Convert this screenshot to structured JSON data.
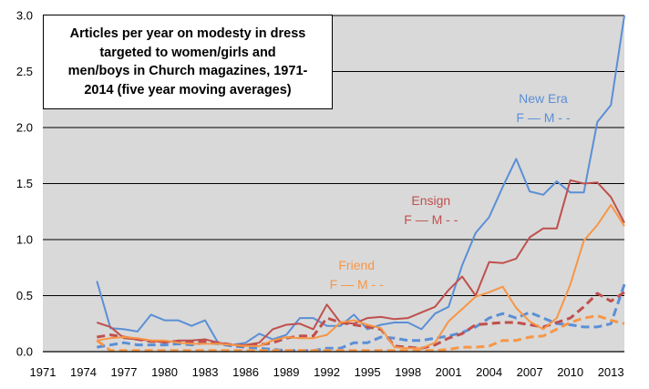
{
  "chart_data": {
    "type": "line",
    "title": "Articles per year on modesty in dress\ntargeted to women/girls and\nmen/boys in Church magazines, 1971-\n2014 (five year moving averages)",
    "xlim": [
      1971,
      2014
    ],
    "ylim": [
      0,
      3.0
    ],
    "x_ticks": [
      "1971",
      "1974",
      "1977",
      "1980",
      "1983",
      "1986",
      "1989",
      "1992",
      "1995",
      "1998",
      "2001",
      "2004",
      "2007",
      "2010",
      "2013"
    ],
    "y_ticks": [
      "0.0",
      "0.5",
      "1.0",
      "1.5",
      "2.0",
      "2.5",
      "3.0"
    ],
    "grid": true,
    "colors": {
      "new_era": "#5B8FD6",
      "ensign": "#C0504D",
      "friend": "#F79646",
      "plot_background": "#D9D9D9"
    },
    "annotations": [
      {
        "text": "New Era",
        "line2": "F —  M - -",
        "color": "#5B8FD6",
        "x": 2008,
        "y": 2.22
      },
      {
        "text": "Ensign",
        "line2": "F —  M - -",
        "color": "#C0504D",
        "x": 1999.7,
        "y": 1.31
      },
      {
        "text": "Friend",
        "line2": "F —  M - -",
        "color": "#F79646",
        "x": 1994.2,
        "y": 0.73
      }
    ],
    "series": [
      {
        "key": "new_era_f",
        "style": "solid",
        "color": "#5B8FD6",
        "x": [
          1975,
          1976,
          1977,
          1978,
          1979,
          1980,
          1981,
          1982,
          1983,
          1984,
          1985,
          1986,
          1987,
          1988,
          1989,
          1990,
          1991,
          1992,
          1993,
          1994,
          1995,
          1996,
          1997,
          1998,
          1999,
          2000,
          2001,
          2002,
          2003,
          2004,
          2005,
          2006,
          2007,
          2008,
          2009,
          2010,
          2011,
          2012,
          2013,
          2014
        ],
        "y": [
          0.63,
          0.21,
          0.2,
          0.18,
          0.33,
          0.28,
          0.28,
          0.23,
          0.28,
          0.07,
          0.06,
          0.08,
          0.16,
          0.11,
          0.15,
          0.3,
          0.3,
          0.23,
          0.23,
          0.33,
          0.2,
          0.24,
          0.26,
          0.26,
          0.2,
          0.34,
          0.4,
          0.77,
          1.06,
          1.2,
          1.47,
          1.72,
          1.43,
          1.4,
          1.52,
          1.42,
          1.42,
          2.05,
          2.2,
          3.0
        ]
      },
      {
        "key": "new_era_m",
        "style": "dashed",
        "color": "#5B8FD6",
        "x": [
          1975,
          1976,
          1977,
          1978,
          1979,
          1980,
          1981,
          1982,
          1983,
          1984,
          1985,
          1986,
          1987,
          1988,
          1989,
          1990,
          1991,
          1992,
          1993,
          1994,
          1995,
          1996,
          1997,
          1998,
          1999,
          2000,
          2001,
          2002,
          2003,
          2004,
          2005,
          2006,
          2007,
          2008,
          2009,
          2010,
          2011,
          2012,
          2013,
          2014
        ],
        "y": [
          0.04,
          0.06,
          0.08,
          0.06,
          0.06,
          0.06,
          0.07,
          0.06,
          0.08,
          0.07,
          0.05,
          0.04,
          0.03,
          0.02,
          0.01,
          0.01,
          0.01,
          0.03,
          0.03,
          0.08,
          0.08,
          0.13,
          0.12,
          0.1,
          0.1,
          0.12,
          0.14,
          0.17,
          0.22,
          0.3,
          0.34,
          0.3,
          0.35,
          0.3,
          0.25,
          0.24,
          0.22,
          0.22,
          0.25,
          0.6
        ]
      },
      {
        "key": "ensign_f",
        "style": "solid",
        "color": "#C0504D",
        "x": [
          1975,
          1976,
          1977,
          1978,
          1979,
          1980,
          1981,
          1982,
          1983,
          1984,
          1985,
          1986,
          1987,
          1988,
          1989,
          1990,
          1991,
          1992,
          1993,
          1994,
          1995,
          1996,
          1997,
          1998,
          1999,
          2000,
          2001,
          2002,
          2003,
          2004,
          2005,
          2006,
          2007,
          2008,
          2009,
          2010,
          2011,
          2012,
          2013,
          2014
        ],
        "y": [
          0.26,
          0.22,
          0.12,
          0.11,
          0.1,
          0.08,
          0.1,
          0.1,
          0.11,
          0.08,
          0.06,
          0.06,
          0.08,
          0.2,
          0.24,
          0.25,
          0.2,
          0.42,
          0.26,
          0.25,
          0.3,
          0.31,
          0.29,
          0.3,
          0.35,
          0.4,
          0.55,
          0.67,
          0.5,
          0.8,
          0.79,
          0.83,
          1.02,
          1.1,
          1.1,
          1.53,
          1.5,
          1.51,
          1.38,
          1.15
        ]
      },
      {
        "key": "ensign_m",
        "style": "dashed",
        "color": "#C0504D",
        "x": [
          1975,
          1976,
          1977,
          1978,
          1979,
          1980,
          1981,
          1982,
          1983,
          1984,
          1985,
          1986,
          1987,
          1988,
          1989,
          1990,
          1991,
          1992,
          1993,
          1994,
          1995,
          1996,
          1997,
          1998,
          1999,
          2000,
          2001,
          2002,
          2003,
          2004,
          2005,
          2006,
          2007,
          2008,
          2009,
          2010,
          2011,
          2012,
          2013,
          2014
        ],
        "y": [
          0.13,
          0.15,
          0.13,
          0.11,
          0.09,
          0.09,
          0.09,
          0.09,
          0.09,
          0.08,
          0.06,
          0.05,
          0.06,
          0.08,
          0.12,
          0.14,
          0.14,
          0.3,
          0.26,
          0.24,
          0.22,
          0.2,
          0.05,
          0.04,
          0.03,
          0.06,
          0.12,
          0.16,
          0.24,
          0.25,
          0.26,
          0.26,
          0.24,
          0.22,
          0.26,
          0.3,
          0.4,
          0.52,
          0.45,
          0.53
        ]
      },
      {
        "key": "friend_f",
        "style": "solid",
        "color": "#F79646",
        "x": [
          1975,
          1976,
          1977,
          1978,
          1979,
          1980,
          1981,
          1982,
          1983,
          1984,
          1985,
          1986,
          1987,
          1988,
          1989,
          1990,
          1991,
          1992,
          1993,
          1994,
          1995,
          1996,
          1997,
          1998,
          1999,
          2000,
          2001,
          2002,
          2003,
          2004,
          2005,
          2006,
          2007,
          2008,
          2009,
          2010,
          2011,
          2012,
          2013,
          2014
        ],
        "y": [
          0.1,
          0.12,
          0.13,
          0.12,
          0.1,
          0.1,
          0.08,
          0.07,
          0.07,
          0.07,
          0.06,
          0.05,
          0.05,
          0.1,
          0.13,
          0.12,
          0.12,
          0.15,
          0.26,
          0.28,
          0.24,
          0.21,
          0.04,
          0.03,
          0.03,
          0.08,
          0.27,
          0.38,
          0.49,
          0.53,
          0.58,
          0.39,
          0.27,
          0.2,
          0.3,
          0.6,
          0.99,
          1.13,
          1.31,
          1.12
        ]
      },
      {
        "key": "friend_m",
        "style": "dashed",
        "color": "#F79646",
        "x": [
          1975,
          1976,
          1977,
          1978,
          1979,
          1980,
          1981,
          1982,
          1983,
          1984,
          1985,
          1986,
          1987,
          1988,
          1989,
          1990,
          1991,
          1992,
          1993,
          1994,
          1995,
          1996,
          1997,
          1998,
          1999,
          2000,
          2001,
          2002,
          2003,
          2004,
          2005,
          2006,
          2007,
          2008,
          2009,
          2010,
          2011,
          2012,
          2013,
          2014
        ],
        "y": [
          0.1,
          0.01,
          0.01,
          0.01,
          0.01,
          0.01,
          0.01,
          0.01,
          0.01,
          0.01,
          0.01,
          0.01,
          0.01,
          0.01,
          0.01,
          0.01,
          0.01,
          0.01,
          0.01,
          0.01,
          0.01,
          0.01,
          0.01,
          0.01,
          0.01,
          0.01,
          0.02,
          0.04,
          0.04,
          0.05,
          0.1,
          0.1,
          0.13,
          0.14,
          0.2,
          0.26,
          0.3,
          0.32,
          0.28,
          0.25
        ]
      }
    ]
  }
}
